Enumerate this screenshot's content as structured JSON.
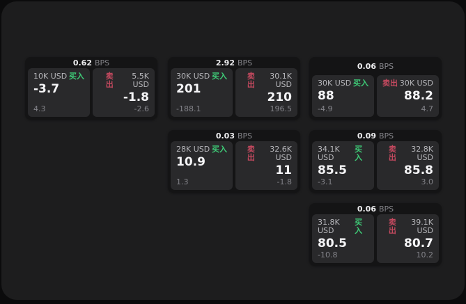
{
  "colors": {
    "buy_green": "#3ecb77",
    "sell_red": "#c4495f",
    "panel_background": "#1d1d1e",
    "card_background": "#141415",
    "tile_background": "#29292b"
  },
  "cards": [
    {
      "bps_value": "0.62",
      "bps_unit": "BPS",
      "buy": {
        "amount": "10K USD",
        "label": "买入",
        "price": "-3.7",
        "delta": "4.3"
      },
      "sell": {
        "label": "卖出",
        "amount": "5.5K USD",
        "price": "-1.8",
        "delta": "-2.6"
      }
    },
    {
      "bps_value": "2.92",
      "bps_unit": "BPS",
      "buy": {
        "amount": "30K USD",
        "label": "买入",
        "price": "201",
        "delta": "-188.1"
      },
      "sell": {
        "label": "卖出",
        "amount": "30.1K USD",
        "price": "210",
        "delta": "196.5"
      }
    },
    {
      "bps_value": "0.06",
      "bps_unit": "BPS",
      "buy": {
        "amount": "30K USD",
        "label": "买入",
        "price": "88",
        "delta": "-4.9"
      },
      "sell": {
        "label": "卖出",
        "amount": "30K USD",
        "price": "88.2",
        "delta": "4.7"
      }
    },
    {
      "bps_value": "0.03",
      "bps_unit": "BPS",
      "buy": {
        "amount": "28K USD",
        "label": "买入",
        "price": "10.9",
        "delta": "1.3"
      },
      "sell": {
        "label": "卖出",
        "amount": "32.6K USD",
        "price": "11",
        "delta": "-1.8"
      }
    },
    {
      "bps_value": "0.09",
      "bps_unit": "BPS",
      "buy": {
        "amount": "34.1K USD",
        "label": "买入",
        "price": "85.5",
        "delta": "-3.1"
      },
      "sell": {
        "label": "卖出",
        "amount": "32.8K USD",
        "price": "85.8",
        "delta": "3.0"
      }
    },
    {
      "bps_value": "0.06",
      "bps_unit": "BPS",
      "buy": {
        "amount": "31.8K USD",
        "label": "买入",
        "price": "80.5",
        "delta": "-10.8"
      },
      "sell": {
        "label": "卖出",
        "amount": "39.1K USD",
        "price": "80.7",
        "delta": "10.2"
      }
    }
  ]
}
